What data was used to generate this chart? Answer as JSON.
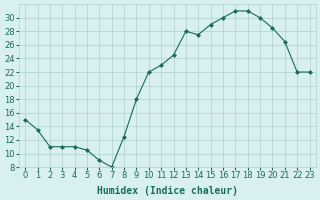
{
  "x": [
    0,
    1,
    2,
    3,
    4,
    5,
    6,
    7,
    8,
    9,
    10,
    11,
    12,
    13,
    14,
    15,
    16,
    17,
    18,
    19,
    20,
    21,
    22,
    23
  ],
  "y": [
    15,
    13.5,
    11,
    11,
    11,
    10.5,
    9,
    8,
    12.5,
    18,
    22,
    23,
    24.5,
    28,
    27.5,
    29,
    30,
    31,
    31,
    30,
    28.5,
    26.5,
    22,
    22
  ],
  "xlabel": "Humidex (Indice chaleur)",
  "xlim": [
    -0.5,
    23.5
  ],
  "ylim": [
    8,
    32
  ],
  "yticks": [
    8,
    10,
    12,
    14,
    16,
    18,
    20,
    22,
    24,
    26,
    28,
    30
  ],
  "xticks": [
    0,
    1,
    2,
    3,
    4,
    5,
    6,
    7,
    8,
    9,
    10,
    11,
    12,
    13,
    14,
    15,
    16,
    17,
    18,
    19,
    20,
    21,
    22,
    23
  ],
  "line_color": "#1a6b5a",
  "marker": "D",
  "marker_size": 2,
  "bg_color": "#d8f0f0",
  "grid_color": "#b0d0d0",
  "label_fontsize": 7,
  "tick_fontsize": 6
}
